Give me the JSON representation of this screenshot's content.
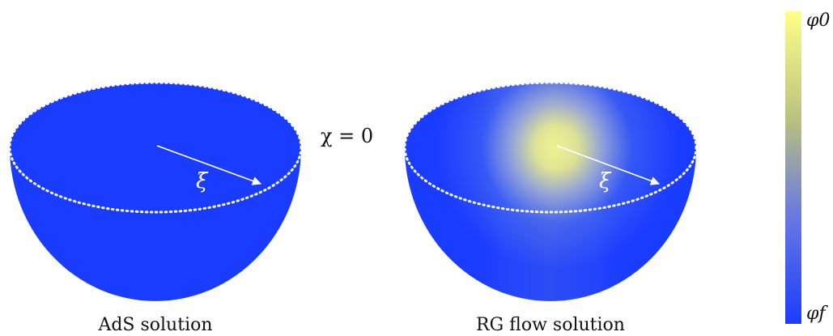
{
  "left_panel": {
    "caption": "AdS solution",
    "radius_label": "ξ"
  },
  "right_panel": {
    "caption": "RG flow solution",
    "radius_label": "ξ"
  },
  "center_label": "χ = 0",
  "colorbar": {
    "top_label": "φ0",
    "bottom_label": "φf",
    "top_color": "#ffff88",
    "bottom_color": "#1a3cff"
  },
  "colors": {
    "bowl_blue": "#1a3cff",
    "center_yellow": "#ffff88",
    "rim_dots": "#ffffff",
    "arrow": "#ffffff"
  }
}
